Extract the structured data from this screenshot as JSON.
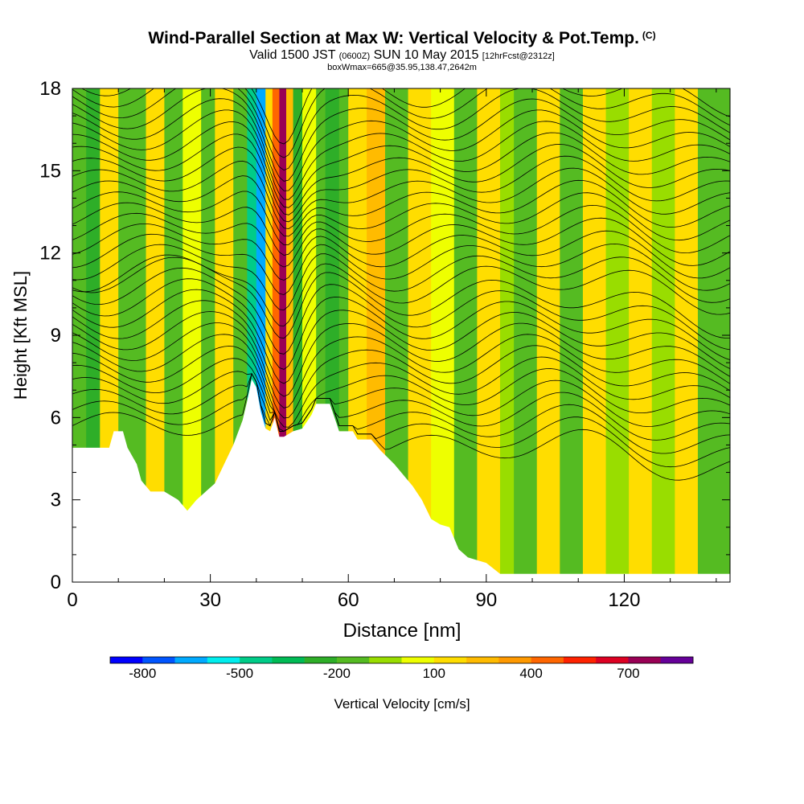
{
  "header": {
    "title": "Wind-Parallel Section at Max W: Vertical Velocity & Pot.Temp.",
    "copyright": "(C)",
    "valid_prefix": "Valid 1500 JST",
    "valid_utc": "(0600Z)",
    "valid_date": "SUN 10 May 2015",
    "forecast_tag": "[12hrFcst@2312z]",
    "box_info": "boxWmax=665@35.95,138.47,2642m"
  },
  "chart_data": {
    "type": "heatmap",
    "title": "Wind-Parallel Section at Max W: Vertical Velocity & Pot.Temp.",
    "xlabel": "Distance [nm]",
    "ylabel": "Height [Kft MSL]",
    "xlim": [
      0,
      143
    ],
    "ylim": [
      0,
      18
    ],
    "x_ticks": [
      0,
      30,
      60,
      90,
      120
    ],
    "y_ticks": [
      0,
      3,
      6,
      9,
      12,
      15,
      18
    ],
    "x_tick_labels": [
      "0",
      "30",
      "60",
      "90",
      "120"
    ],
    "y_tick_labels": [
      "0",
      "3",
      "6",
      "9",
      "12",
      "15",
      "18"
    ],
    "colorbar": {
      "label": "Vertical Velocity [cm/s]",
      "tick_values": [
        -800,
        -500,
        -200,
        100,
        400,
        700
      ],
      "tick_labels": [
        "-800",
        "-500",
        "-200",
        "100",
        "400",
        "700"
      ],
      "colors": [
        "#0000ff",
        "#0055ff",
        "#00aaff",
        "#00eeee",
        "#00cc88",
        "#00bb55",
        "#2eae28",
        "#55bb22",
        "#99dd00",
        "#eeff00",
        "#ffdd00",
        "#ffbb00",
        "#ff9900",
        "#ff6600",
        "#ff2200",
        "#dd0022",
        "#990055",
        "#660099"
      ]
    },
    "terrain_kft": [
      [
        0,
        4.9
      ],
      [
        8,
        4.9
      ],
      [
        9,
        5.5
      ],
      [
        11,
        5.5
      ],
      [
        12,
        4.9
      ],
      [
        14,
        4.3
      ],
      [
        15,
        3.7
      ],
      [
        17,
        3.3
      ],
      [
        20,
        3.3
      ],
      [
        23,
        3.0
      ],
      [
        25,
        2.6
      ],
      [
        27,
        3.0
      ],
      [
        29,
        3.3
      ],
      [
        31,
        3.6
      ],
      [
        33,
        4.3
      ],
      [
        35,
        5.0
      ],
      [
        37,
        5.9
      ],
      [
        38,
        6.6
      ],
      [
        39,
        7.4
      ],
      [
        40,
        7.1
      ],
      [
        41,
        6.2
      ],
      [
        42,
        5.6
      ],
      [
        43,
        5.5
      ],
      [
        44,
        6.0
      ],
      [
        45,
        5.3
      ],
      [
        46,
        5.3
      ],
      [
        48,
        5.5
      ],
      [
        50,
        5.6
      ],
      [
        52,
        6.1
      ],
      [
        53,
        6.5
      ],
      [
        56,
        6.5
      ],
      [
        57,
        6.0
      ],
      [
        58,
        5.5
      ],
      [
        61,
        5.5
      ],
      [
        62,
        5.2
      ],
      [
        65,
        5.2
      ],
      [
        67,
        4.8
      ],
      [
        70,
        4.3
      ],
      [
        72,
        3.9
      ],
      [
        74,
        3.5
      ],
      [
        76,
        3.0
      ],
      [
        78,
        2.3
      ],
      [
        80,
        2.1
      ],
      [
        82,
        2.0
      ],
      [
        84,
        1.2
      ],
      [
        86,
        0.9
      ],
      [
        88,
        0.8
      ],
      [
        90,
        0.7
      ],
      [
        93,
        0.3
      ],
      [
        143,
        0.3
      ]
    ],
    "velocity_bands": [
      [
        0,
        3,
        -150
      ],
      [
        3,
        6,
        -250
      ],
      [
        6,
        10,
        100
      ],
      [
        10,
        16,
        -150
      ],
      [
        16,
        20,
        100
      ],
      [
        20,
        24,
        -150
      ],
      [
        24,
        28,
        50
      ],
      [
        28,
        31,
        -150
      ],
      [
        31,
        35,
        100
      ],
      [
        35,
        38,
        -150
      ],
      [
        38,
        40,
        -450
      ],
      [
        40,
        42,
        -650
      ],
      [
        42,
        43.5,
        150
      ],
      [
        43.5,
        45,
        400
      ],
      [
        45,
        46.5,
        700
      ],
      [
        46.5,
        48,
        250
      ],
      [
        48,
        50,
        -250
      ],
      [
        50,
        53,
        50
      ],
      [
        53,
        55,
        -150
      ],
      [
        55,
        58,
        -300
      ],
      [
        58,
        60,
        -150
      ],
      [
        60,
        64,
        100
      ],
      [
        64,
        68,
        200
      ],
      [
        68,
        73,
        -150
      ],
      [
        73,
        78,
        100
      ],
      [
        78,
        83,
        50
      ],
      [
        83,
        88,
        -150
      ],
      [
        88,
        93,
        100
      ],
      [
        93,
        96,
        -100
      ],
      [
        96,
        101,
        -150
      ],
      [
        101,
        106,
        100
      ],
      [
        106,
        111,
        -150
      ],
      [
        111,
        116,
        100
      ],
      [
        116,
        121,
        -100
      ],
      [
        121,
        126,
        100
      ],
      [
        126,
        131,
        -100
      ],
      [
        131,
        136,
        100
      ],
      [
        136,
        143,
        -150
      ]
    ],
    "isentrope_count": 32
  }
}
